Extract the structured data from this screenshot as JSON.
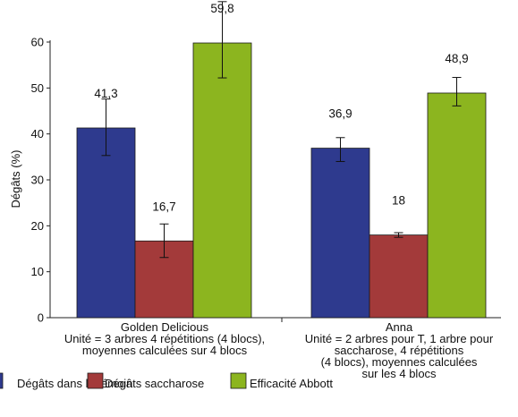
{
  "chart_data": {
    "type": "bar",
    "ylabel": "Dégâts (%)",
    "ylim": [
      0,
      60
    ],
    "yticks": [
      0,
      10,
      20,
      30,
      40,
      50,
      60
    ],
    "categories": [
      [
        "Golden Delicious",
        "Unité = 3 arbres 4 répétitions (4 blocs),",
        "moyennes calculées sur 4 blocs"
      ],
      [
        "Anna",
        "Unité = 2 arbres pour T, 1 arbre pour",
        "saccharose, 4 répétitions",
        "(4 blocs), moyennes calculées",
        "sur les 4 blocs"
      ]
    ],
    "series": [
      {
        "name": "Dégâts dans le témoin",
        "color": "#2E3A8E",
        "values": [
          41.3,
          36.9
        ],
        "labels": [
          "41,3",
          "36,9"
        ],
        "err_low": [
          35.3,
          34.0
        ],
        "err_high": [
          47.6,
          39.2
        ]
      },
      {
        "name": "Dégâts saccharose",
        "color": "#A33A3A",
        "values": [
          16.7,
          18
        ],
        "labels": [
          "16,7",
          "18"
        ],
        "err_low": [
          13.1,
          17.5
        ],
        "err_high": [
          20.4,
          18.5
        ]
      },
      {
        "name": "Efficacité Abbott",
        "color": "#8CB51F",
        "values": [
          59.8,
          48.9
        ],
        "labels": [
          "59,8",
          "48,9"
        ],
        "err_low": [
          52.2,
          46.1
        ],
        "err_high": [
          68.8,
          52.3
        ]
      }
    ],
    "grid": false,
    "legend_position": "bottom"
  }
}
